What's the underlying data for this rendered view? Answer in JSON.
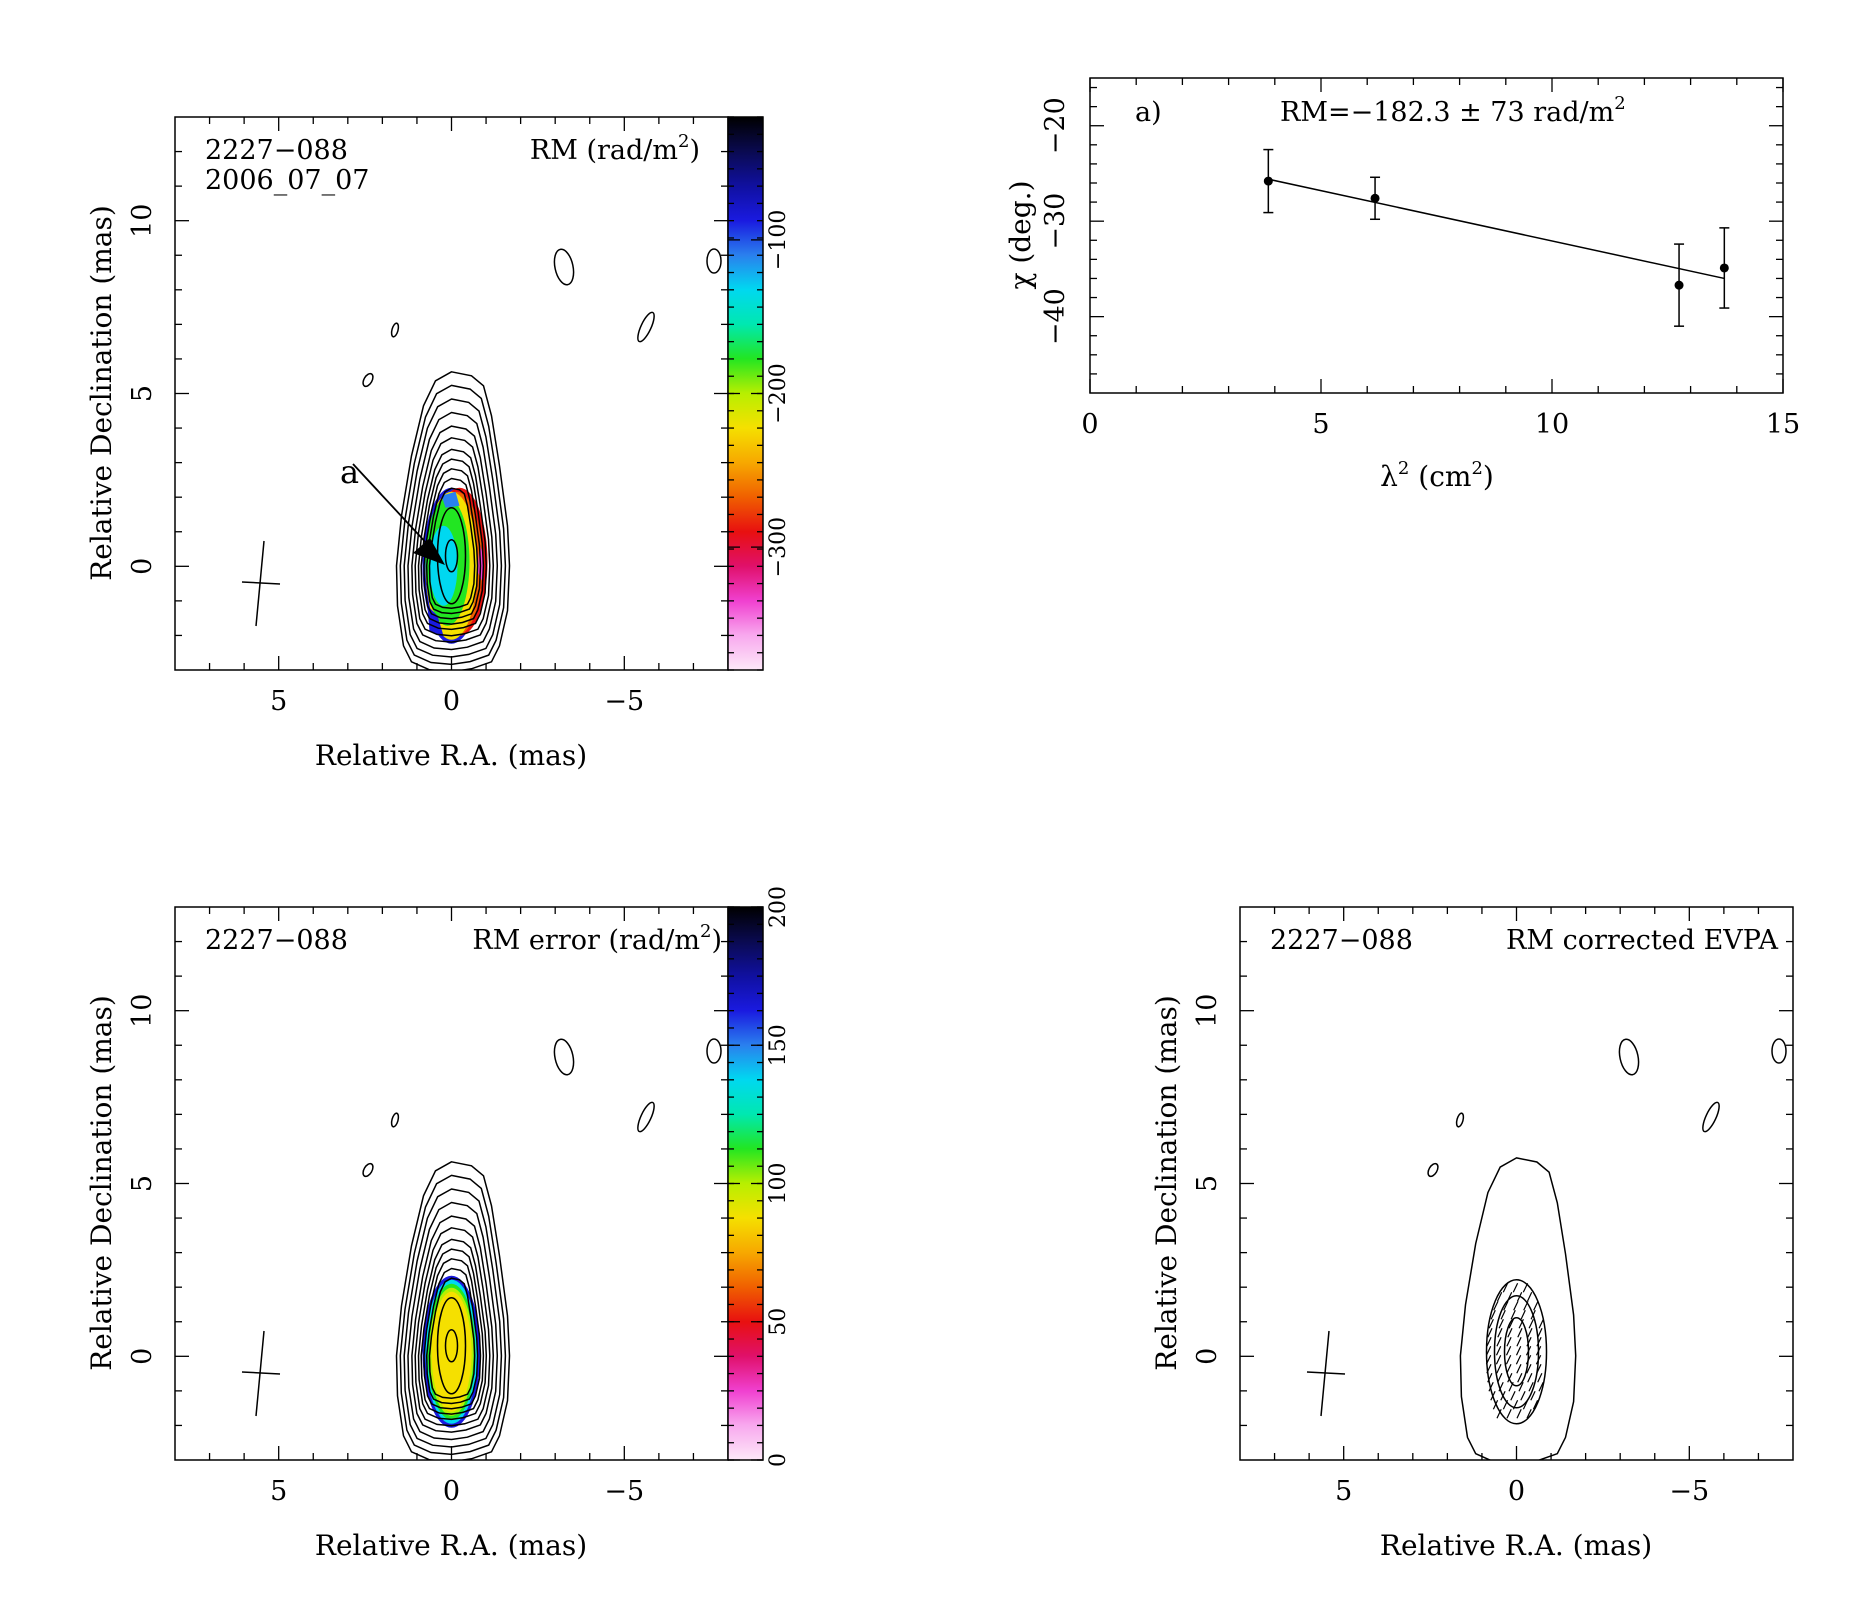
{
  "colors": {
    "ink": "#000000",
    "background": "#ffffff"
  },
  "colormaps": {
    "rm": [
      "#fde8f8",
      "#f8a8ee",
      "#f040d0",
      "#e0106a",
      "#e81010",
      "#f06000",
      "#f7a800",
      "#f5e000",
      "#b8ef00",
      "#22e622",
      "#00e8b0",
      "#00d8f0",
      "#2a80ee",
      "#1a1ae0",
      "#1010a0",
      "#0a0a50",
      "#000000"
    ],
    "err": [
      "#fde8f8",
      "#f8a8ee",
      "#f040d0",
      "#e0106a",
      "#e81010",
      "#f06000",
      "#f7a800",
      "#f5e000",
      "#b8ef00",
      "#22e622",
      "#00e8b0",
      "#00d8f0",
      "#2a80ee",
      "#1a1ae0",
      "#1010a0",
      "#0a0a50",
      "#000000"
    ]
  },
  "chart_data": [
    {
      "id": "rm_map",
      "type": "heatmap",
      "source_label": "2227−088",
      "epoch_label": "2006_07_07",
      "map_label_prefix": "RM (rad/m",
      "map_label_sup": "2",
      "map_label_suffix": ")",
      "annotation": "a",
      "xlabel": "Relative R.A. (mas)",
      "ylabel": "Relative Declination (mas)",
      "xlim": [
        8,
        -8
      ],
      "ylim": [
        -3,
        13
      ],
      "xticks": [
        5,
        0,
        -5
      ],
      "xticklabels": [
        "5",
        "0",
        "−5"
      ],
      "yticks": [
        0,
        5,
        10
      ],
      "yticklabels": [
        "0",
        "5",
        "10"
      ],
      "colorbar": {
        "range": [
          -380,
          -20
        ],
        "ticks": [
          -100,
          -200,
          -300
        ],
        "ticklabels": [
          "−100",
          "−200",
          "−300"
        ]
      }
    },
    {
      "id": "rm_fit",
      "type": "scatter",
      "panel_label": "a)",
      "fit_label": "RM=−182.3 ± 73 rad/m",
      "fit_label_sup": "2",
      "xlabel_main": "λ",
      "xlabel_sup": "2",
      "xlabel_unit_prefix": " (cm",
      "xlabel_unit_sup": "2",
      "xlabel_unit_suffix": ")",
      "ylabel": "χ (deg.)",
      "xlim": [
        0,
        15
      ],
      "ylim": [
        -48,
        -15
      ],
      "xticks": [
        0,
        5,
        10,
        15
      ],
      "xticklabels": [
        "0",
        "5",
        "10",
        "15"
      ],
      "yticks": [
        -20,
        -30,
        -40
      ],
      "yticklabels": [
        "−20",
        "−30",
        "−40"
      ],
      "series": [
        {
          "x": [
            3.86,
            6.17,
            12.75,
            13.73
          ],
          "y": [
            -25.8,
            -27.6,
            -36.7,
            -34.9
          ],
          "yerr": [
            3.3,
            2.2,
            4.3,
            4.2
          ]
        }
      ],
      "fit_line": {
        "x": [
          3.86,
          13.73
        ],
        "y": [
          -25.6,
          -36.0
        ]
      }
    },
    {
      "id": "rm_error_map",
      "type": "heatmap",
      "source_label": "2227−088",
      "map_label_prefix": "RM error (rad/m",
      "map_label_sup": "2",
      "map_label_suffix": ")",
      "xlabel": "Relative R.A. (mas)",
      "ylabel": "Relative Declination (mas)",
      "xlim": [
        8,
        -8
      ],
      "ylim": [
        -3,
        13
      ],
      "xticks": [
        5,
        0,
        -5
      ],
      "xticklabels": [
        "5",
        "0",
        "−5"
      ],
      "yticks": [
        0,
        5,
        10
      ],
      "yticklabels": [
        "0",
        "5",
        "10"
      ],
      "colorbar": {
        "range": [
          0,
          200
        ],
        "ticks": [
          0,
          50,
          100,
          150,
          200
        ],
        "ticklabels": [
          "0",
          "50",
          "100",
          "150",
          "200"
        ]
      }
    },
    {
      "id": "evpa_map",
      "type": "heatmap",
      "source_label": "2227−088",
      "map_label": "RM corrected EVPA",
      "xlabel": "Relative R.A. (mas)",
      "ylabel": "Relative Declination (mas)",
      "xlim": [
        8,
        -8
      ],
      "ylim": [
        -3,
        13
      ],
      "xticks": [
        5,
        0,
        -5
      ],
      "xticklabels": [
        "5",
        "0",
        "−5"
      ],
      "yticks": [
        0,
        5,
        10
      ],
      "yticklabels": [
        "0",
        "5",
        "10"
      ]
    }
  ]
}
